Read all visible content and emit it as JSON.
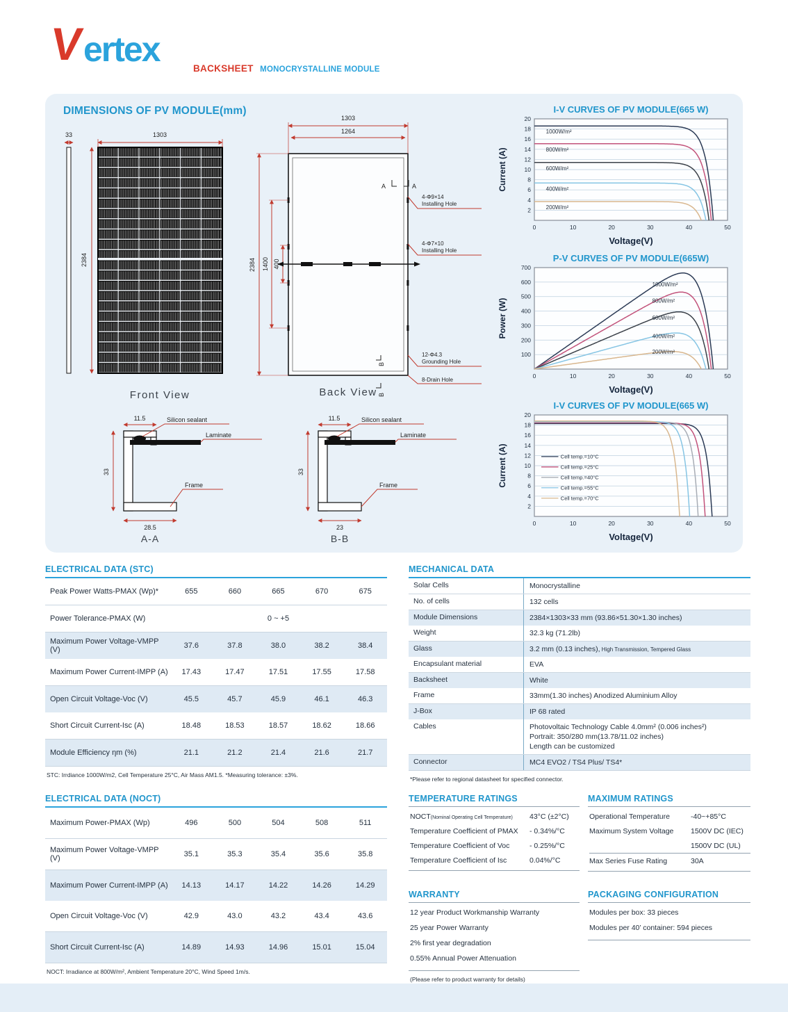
{
  "header": {
    "logo_v": "V",
    "logo_rest": "ertex",
    "subtitle_red": "BACKSHEET",
    "subtitle_blue": "MONOCRYSTALLINE MODULE"
  },
  "panel": {
    "title": "DIMENSIONS OF PV MODULE(mm)"
  },
  "diagrams": {
    "front_view": {
      "caption": "Front View",
      "dim_top": "1303",
      "dim_side": "2384",
      "dim_thickness": "33"
    },
    "back_view": {
      "caption": "Back View",
      "dim_top_outer": "1303",
      "dim_top_inner": "1264",
      "dim_side": "2384",
      "dim_mid": "1400",
      "dim_inner": "400",
      "marker_a_left": "A",
      "marker_a_right": "A",
      "marker_b_top": "B",
      "marker_b_bottom": "B",
      "installing_hole_1_line1": "4-Φ9×14",
      "installing_hole_1_line2": "Installing Hole",
      "installing_hole_2_line1": "4-Φ7×10",
      "installing_hole_2_line2": "Installing Hole",
      "grounding_hole_line1": "12-Φ4.3",
      "grounding_hole_line2": "Grounding Hole",
      "drain_hole": "8-Drain Hole"
    },
    "section_aa": {
      "caption": "A-A",
      "dim_top": "11.5",
      "dim_side": "33",
      "dim_bottom": "28.5",
      "label_sealant": "Silicon sealant",
      "label_laminate": "Laminate",
      "label_frame": "Frame"
    },
    "section_bb": {
      "caption": "B-B",
      "dim_top": "11.5",
      "dim_side": "33",
      "dim_bottom": "23",
      "label_sealant": "Silicon sealant",
      "label_laminate": "Laminate",
      "label_frame": "Frame"
    }
  },
  "chart_data": [
    {
      "type": "line",
      "title": "I-V CURVES OF PV MODULE(665 W)",
      "xlabel": "Voltage(V)",
      "ylabel": "Current (A)",
      "xlim": [
        0,
        50
      ],
      "ylim": [
        0,
        20
      ],
      "xticks": [
        0,
        10,
        20,
        30,
        40,
        50
      ],
      "yticks": [
        2,
        4,
        6,
        8,
        10,
        12,
        14,
        16,
        18,
        20
      ],
      "grid": "horizontal",
      "curve_model": "iv",
      "label_placement": "left",
      "series": [
        {
          "name": "1000W/m²",
          "color": "#2b3a55",
          "isc": 18.6,
          "voc": 46.3
        },
        {
          "name": "800W/m²",
          "color": "#c2527a",
          "isc": 15.1,
          "voc": 45.8
        },
        {
          "name": "600W/m²",
          "color": "#3a4048",
          "isc": 11.4,
          "voc": 45.2
        },
        {
          "name": "400W/m²",
          "color": "#86c5e4",
          "isc": 7.35,
          "voc": 44.4
        },
        {
          "name": "200W/m²",
          "color": "#d9b78e",
          "isc": 3.7,
          "voc": 43.2
        }
      ]
    },
    {
      "type": "line",
      "title": "P-V CURVES OF PV MODULE(665W)",
      "xlabel": "Voltage(V)",
      "ylabel": "Power (W)",
      "xlim": [
        0,
        50
      ],
      "ylim": [
        0,
        700
      ],
      "xticks": [
        0,
        10,
        20,
        30,
        40,
        50
      ],
      "yticks": [
        100,
        200,
        300,
        400,
        500,
        600,
        700
      ],
      "grid": "horizontal",
      "curve_model": "pv",
      "label_placement": "right",
      "series": [
        {
          "name": "1000W/m²",
          "color": "#2b3a55",
          "isc": 18.6,
          "voc": 46.3,
          "pmax": 665
        },
        {
          "name": "800W/m²",
          "color": "#c2527a",
          "isc": 15.1,
          "voc": 45.8,
          "pmax": 530
        },
        {
          "name": "600W/m²",
          "color": "#3a4048",
          "isc": 11.4,
          "voc": 45.2,
          "pmax": 400
        },
        {
          "name": "400W/m²",
          "color": "#86c5e4",
          "isc": 7.35,
          "voc": 44.4,
          "pmax": 265
        },
        {
          "name": "200W/m²",
          "color": "#d9b78e",
          "isc": 3.7,
          "voc": 43.2,
          "pmax": 140
        }
      ]
    },
    {
      "type": "line",
      "title": "I-V CURVES OF PV MODULE(665 W)",
      "xlabel": "Voltage(V)",
      "ylabel": "Current (A)",
      "xlim": [
        0,
        50
      ],
      "ylim": [
        0,
        20
      ],
      "xticks": [
        0,
        10,
        20,
        30,
        40,
        50
      ],
      "yticks": [
        2,
        4,
        6,
        8,
        10,
        12,
        14,
        16,
        18,
        20
      ],
      "grid": "horizontal",
      "curve_model": "iv",
      "legend": true,
      "series": [
        {
          "name": "Cell temp.=10°C",
          "color": "#2b3a55",
          "isc": 18.3,
          "voc": 46.0
        },
        {
          "name": "Cell temp.=25°C",
          "color": "#c2527a",
          "isc": 18.45,
          "voc": 44.2
        },
        {
          "name": "Cell temp.=40°C",
          "color": "#a8adb5",
          "isc": 18.6,
          "voc": 42.4
        },
        {
          "name": "Cell temp.=55°C",
          "color": "#86c5e4",
          "isc": 18.7,
          "voc": 40.2
        },
        {
          "name": "Cell temp.=70°C",
          "color": "#d9b78e",
          "isc": 18.8,
          "voc": 37.6
        }
      ]
    }
  ],
  "tables": {
    "electrical_stc": {
      "title": "ELECTRICAL DATA (STC)",
      "rows": [
        {
          "label": "Peak Power Watts-PMAX (Wp)*",
          "values": [
            "655",
            "660",
            "665",
            "670",
            "675"
          ],
          "shaded": false
        },
        {
          "label": "Power Tolerance-PMAX (W)",
          "values": [
            "0 ~ +5"
          ],
          "shaded": false
        },
        {
          "label": "Maximum Power Voltage-VMPP (V)",
          "values": [
            "37.6",
            "37.8",
            "38.0",
            "38.2",
            "38.4"
          ],
          "shaded": true
        },
        {
          "label": "Maximum Power Current-IMPP (A)",
          "values": [
            "17.43",
            "17.47",
            "17.51",
            "17.55",
            "17.58"
          ],
          "shaded": false
        },
        {
          "label": "Open Circuit Voltage-Voc (V)",
          "values": [
            "45.5",
            "45.7",
            "45.9",
            "46.1",
            "46.3"
          ],
          "shaded": true
        },
        {
          "label": "Short Circuit Current-Isc (A)",
          "values": [
            "18.48",
            "18.53",
            "18.57",
            "18.62",
            "18.66"
          ],
          "shaded": false
        },
        {
          "label": "Module Efficiency ηm (%)",
          "values": [
            "21.1",
            "21.2",
            "21.4",
            "21.6",
            "21.7"
          ],
          "shaded": true
        }
      ],
      "footnote": "STC: Irrdiance 1000W/m2, Cell Temperature 25°C, Air Mass AM1.5.   *Measuring tolerance: ±3%."
    },
    "electrical_noct": {
      "title": "ELECTRICAL DATA (NOCT)",
      "rows": [
        {
          "label": "Maximum Power-PMAX (Wp)",
          "values": [
            "496",
            "500",
            "504",
            "508",
            "511"
          ],
          "shaded": false
        },
        {
          "label": "Maximum Power Voltage-VMPP (V)",
          "values": [
            "35.1",
            "35.3",
            "35.4",
            "35.6",
            "35.8"
          ],
          "shaded": false
        },
        {
          "label": "Maximum Power Current-IMPP (A)",
          "values": [
            "14.13",
            "14.17",
            "14.22",
            "14.26",
            "14.29"
          ],
          "shaded": true
        },
        {
          "label": "Open Circuit Voltage-Voc (V)",
          "values": [
            "42.9",
            "43.0",
            "43.2",
            "43.4",
            "43.6"
          ],
          "shaded": false
        },
        {
          "label": "Short Circuit Current-Isc (A)",
          "values": [
            "14.89",
            "14.93",
            "14.96",
            "15.01",
            "15.04"
          ],
          "shaded": true
        }
      ],
      "footnote": "NOCT: Irradiance at 800W/m², Ambient Temperature 20°C, Wind Speed 1m/s."
    },
    "mechanical": {
      "title": "MECHANICAL DATA",
      "rows": [
        {
          "label": "Solar Cells",
          "value": "Monocrystalline",
          "shaded": false
        },
        {
          "label": "No. of cells",
          "value": "132 cells",
          "shaded": false
        },
        {
          "label": "Module Dimensions",
          "value": "2384×1303×33 mm (93.86×51.30×1.30 inches)",
          "shaded": true
        },
        {
          "label": "Weight",
          "value": "32.3 kg (71.2lb)",
          "shaded": false
        },
        {
          "label": "Glass",
          "value": "3.2 mm (0.13 inches),",
          "value_small": "High Transmission,  Tempered Glass",
          "shaded": true
        },
        {
          "label": "Encapsulant material",
          "value": "EVA",
          "shaded": false
        },
        {
          "label": "Backsheet",
          "value": "White",
          "shaded": true
        },
        {
          "label": "Frame",
          "value": "33mm(1.30 inches)  Anodized  Aluminium Alloy",
          "shaded": false
        },
        {
          "label": "J-Box",
          "value": "IP 68 rated",
          "shaded": true
        },
        {
          "label": "Cables",
          "value_lines": [
            "Photovoltaic Technology Cable 4.0mm² (0.006 inches²)",
            "Portrait: 350/280 mm(13.78/11.02 inches)",
            "Length can be customized"
          ],
          "shaded": false
        },
        {
          "label": "Connector",
          "value": "MC4 EVO2 / TS4 Plus/ TS4*",
          "shaded": true
        }
      ],
      "footnote": "*Please refer to regional datasheet for specified connector."
    },
    "temperature": {
      "title": "TEMPERATURE RATINGS",
      "rows": [
        {
          "label": "NOCT",
          "label_small": "(Nominal Operating Cell Temperature)",
          "value": "43°C (±2°C)"
        },
        {
          "label": "Temperature Coefficient of PMAX",
          "value": "- 0.34%/°C"
        },
        {
          "label": "Temperature Coefficient of Voc",
          "value": "- 0.25%/°C"
        },
        {
          "label": "Temperature Coefficient of Isc",
          "value": "0.04%/°C"
        }
      ]
    },
    "maximum": {
      "title": "MAXIMUM RATINGS",
      "rows": [
        {
          "label": "Operational Temperature",
          "value": "-40~+85°C"
        },
        {
          "label": "Maximum System Voltage",
          "value": "1500V DC (IEC)"
        },
        {
          "label": "",
          "value": "1500V DC (UL)"
        },
        {
          "label": "Max Series Fuse Rating",
          "value": "30A",
          "separated": true
        }
      ]
    },
    "warranty": {
      "title": "WARRANTY",
      "items": [
        "12 year Product Workmanship Warranty",
        "25 year Power Warranty",
        "2% first year degradation",
        "0.55% Annual Power Attenuation"
      ],
      "footnote": "(Please refer to product warranty for details)"
    },
    "packaging": {
      "title": "PACKAGING CONFIGURATION",
      "items": [
        "Modules per box: 33 pieces",
        "Modules per 40’ container:  594 pieces"
      ]
    }
  }
}
